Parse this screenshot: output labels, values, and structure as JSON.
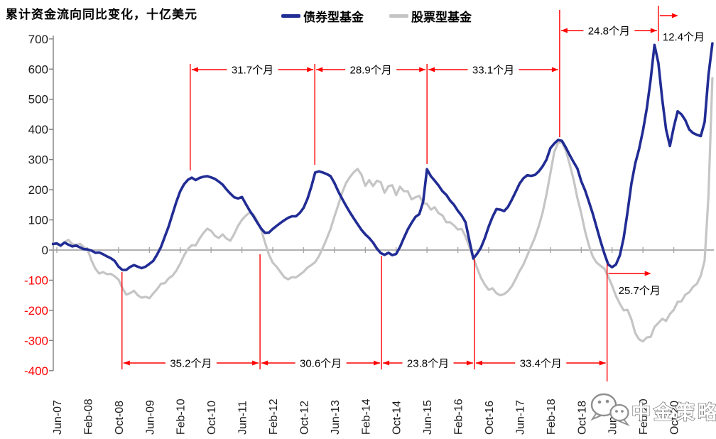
{
  "header": {
    "title": "累计资金流向同比变化，十亿美元"
  },
  "legend": [
    {
      "label": "债券型基金",
      "color": "#212C94"
    },
    {
      "label": "股票型基金",
      "color": "#C5C5C5"
    }
  ],
  "watermark": {
    "text": "中金策略",
    "icon": "wechat-bubbles-icon"
  },
  "chart_data": {
    "type": "line",
    "title": "累计资金流向同比变化，十亿美元",
    "ylabel": "十亿美元",
    "ylim": [
      -400,
      700
    ],
    "ytick_step": 100,
    "y_tick_labels": [
      "700",
      "600",
      "500",
      "400",
      "300",
      "200",
      "100",
      "0",
      "-100",
      "-200",
      "-300",
      "-400"
    ],
    "negative_tick_color": "#FF0000",
    "positive_tick_color": "#1A1A1A",
    "grid": "zero-line-only",
    "x_tick_labels": [
      "Jun-07",
      "Feb-08",
      "Oct-08",
      "Jun-09",
      "Feb-10",
      "Oct-10",
      "Jun-11",
      "Feb-12",
      "Oct-12",
      "Jun-13",
      "Feb-14",
      "Oct-14",
      "Jun-15",
      "Feb-16",
      "Oct-16",
      "Jun-17",
      "Feb-18",
      "Oct-18",
      "Jun-19",
      "Feb-20",
      "Oct-20"
    ],
    "x_tick_every_months": 8,
    "x_start_month_offset": -1,
    "x_unit": "months since Jun-2007 (monthly samples)",
    "series": [
      {
        "name": "债券型基金",
        "color": "#212C94",
        "width": 3.6,
        "values": [
          20,
          22,
          15,
          25,
          18,
          12,
          15,
          9,
          3,
          2,
          -2,
          -9,
          -8,
          -14,
          -21,
          -27,
          -36,
          -55,
          -66,
          -66,
          -56,
          -50,
          -55,
          -60,
          -55,
          -46,
          -36,
          -15,
          10,
          44,
          78,
          120,
          160,
          195,
          218,
          233,
          240,
          232,
          239,
          243,
          245,
          241,
          236,
          227,
          217,
          201,
          187,
          175,
          171,
          176,
          153,
          131,
          112,
          91,
          71,
          57,
          58,
          70,
          80,
          90,
          99,
          107,
          112,
          112,
          123,
          140,
          170,
          210,
          257,
          261,
          257,
          252,
          245,
          222,
          194,
          170,
          147,
          125,
          105,
          86,
          67,
          52,
          40,
          25,
          5,
          -10,
          -16,
          -9,
          -17,
          -13,
          10,
          40,
          68,
          90,
          110,
          119,
          160,
          268,
          245,
          230,
          214,
          195,
          183,
          164,
          150,
          130,
          114,
          92,
          30,
          -28,
          -12,
          8,
          40,
          78,
          110,
          136,
          134,
          129,
          143,
          167,
          193,
          220,
          238,
          248,
          246,
          249,
          261,
          278,
          300,
          338,
          353,
          365,
          362,
          340,
          315,
          292,
          270,
          228,
          198,
          160,
          120,
          75,
          30,
          -12,
          -48,
          -57,
          -48,
          -18,
          40,
          125,
          220,
          287,
          335,
          395,
          470,
          565,
          680,
          620,
          500,
          400,
          345,
          408,
          460,
          450,
          430,
          400,
          388,
          382,
          378,
          425,
          580,
          685
        ]
      },
      {
        "name": "股票型基金",
        "color": "#C5C5C5",
        "width": 3.2,
        "values": [
          24,
          20,
          12,
          26,
          34,
          20,
          17,
          21,
          10,
          2,
          -35,
          -62,
          -78,
          -73,
          -80,
          -79,
          -87,
          -98,
          -126,
          -148,
          -143,
          -135,
          -150,
          -158,
          -155,
          -160,
          -144,
          -130,
          -112,
          -110,
          -94,
          -85,
          -68,
          -45,
          -18,
          4,
          16,
          15,
          38,
          56,
          71,
          64,
          47,
          40,
          52,
          38,
          31,
          53,
          80,
          100,
          114,
          124,
          118,
          96,
          68,
          25,
          -15,
          -42,
          -55,
          -73,
          -90,
          -97,
          -90,
          -91,
          -82,
          -72,
          -58,
          -50,
          -40,
          -20,
          8,
          38,
          70,
          112,
          150,
          190,
          222,
          242,
          258,
          269,
          250,
          213,
          232,
          212,
          230,
          225,
          190,
          212,
          215,
          182,
          210,
          195,
          195,
          168,
          175,
          180,
          155,
          153,
          134,
          142,
          122,
          115,
          92,
          92,
          82,
          68,
          70,
          45,
          10,
          -25,
          -60,
          -92,
          -115,
          -132,
          -127,
          -143,
          -150,
          -146,
          -136,
          -120,
          -96,
          -70,
          -48,
          -18,
          12,
          42,
          80,
          125,
          185,
          255,
          325,
          356,
          358,
          330,
          285,
          235,
          172,
          122,
          62,
          15,
          -22,
          -42,
          -52,
          -62,
          -88,
          -118,
          -152,
          -178,
          -200,
          -198,
          -230,
          -275,
          -296,
          -303,
          -290,
          -288,
          -255,
          -242,
          -228,
          -235,
          -212,
          -198,
          -172,
          -170,
          -148,
          -140,
          -122,
          -112,
          -85,
          -35,
          180,
          570
        ]
      }
    ],
    "annotations": {
      "top_spans": [
        {
          "label": "31.7个月",
          "m1": 34.6,
          "m2": 66.9,
          "row": "upper"
        },
        {
          "label": "28.9个月",
          "m1": 66.9,
          "m2": 96.0,
          "row": "upper"
        },
        {
          "label": "33.1个月",
          "m1": 96.0,
          "m2": 130.4,
          "row": "upper"
        },
        {
          "label": "24.8个月",
          "m1": 130.4,
          "m2": 156.0,
          "row": "top"
        }
      ],
      "bottom_spans": [
        {
          "label": "35.2个月",
          "m1": 16.9,
          "m2": 52.7
        },
        {
          "label": "30.6个月",
          "m1": 52.7,
          "m2": 84.2
        },
        {
          "label": "23.8个月",
          "m1": 84.2,
          "m2": 108.3
        },
        {
          "label": "33.4个月",
          "m1": 108.3,
          "m2": 142.7
        }
      ],
      "floating": [
        {
          "label": "12.4个月",
          "m": 156.0,
          "style": "mini-top"
        },
        {
          "label": "25.7个月",
          "m": 142.7,
          "style": "mid-right"
        }
      ],
      "dividers_top": [
        {
          "m": 34.6,
          "y1": 90,
          "y2": 240
        },
        {
          "m": 66.9,
          "y1": 90,
          "y2": 232
        },
        {
          "m": 96.0,
          "y1": 90,
          "y2": 231
        },
        {
          "m": 130.4,
          "y1": 14,
          "y2": 193
        },
        {
          "m": 156.0,
          "y1": 8,
          "y2": 58
        }
      ],
      "dividers_bottom": [
        {
          "m": 16.9,
          "y1": 383,
          "y2": 520
        },
        {
          "m": 52.7,
          "y1": 358,
          "y2": 520
        },
        {
          "m": 84.2,
          "y1": 360,
          "y2": 520
        },
        {
          "m": 108.3,
          "y1": 365,
          "y2": 520
        },
        {
          "m": 142.7,
          "y1": 372,
          "y2": 537
        }
      ],
      "annotation_color": "#FF0000",
      "annotation_text_color": "#000000"
    }
  }
}
